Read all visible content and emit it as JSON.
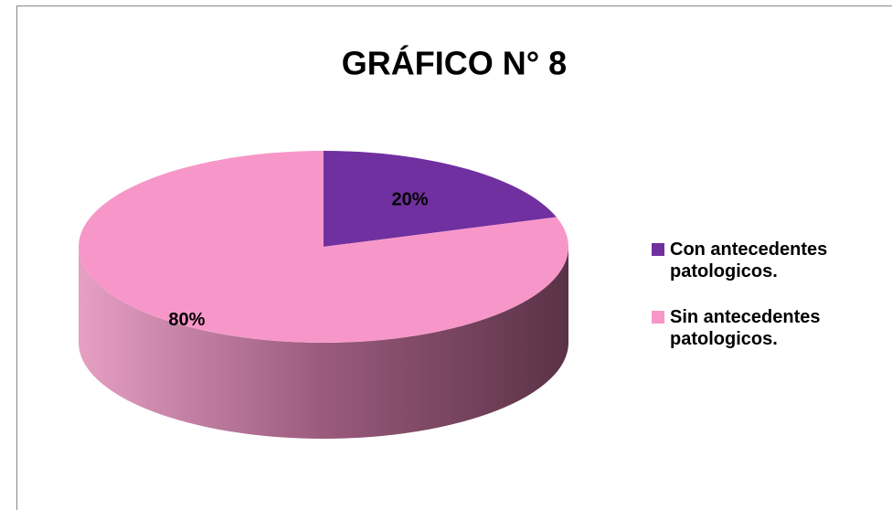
{
  "chart_data": {
    "type": "pie",
    "title": "GRÁFICO N° 8",
    "categories": [
      "Con antecedentes patologicos.",
      "Sin antecedentes patologicos."
    ],
    "values": [
      20,
      80
    ],
    "value_labels": [
      "20%",
      "80%"
    ],
    "colors": [
      "#7030a0",
      "#f797c9"
    ],
    "legend": "right"
  }
}
